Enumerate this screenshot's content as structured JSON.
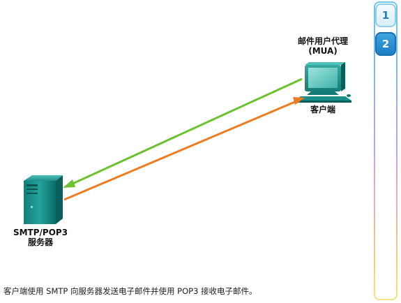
{
  "diagram": {
    "client_title_line1": "邮件用户代理",
    "client_title_line2": "(MUA)",
    "client_label": "客户端",
    "server_label_line1": "SMTP/POP3",
    "server_label_line2": "服务器",
    "caption": "客户端使用 SMTP 向服务器发送电子邮件并使用 POP3 接收电子邮件。"
  },
  "steps": [
    {
      "label": "1",
      "active": false
    },
    {
      "label": "2",
      "active": true
    }
  ],
  "colors": {
    "green_arrow": "#6cc22e",
    "orange_arrow": "#f07c22",
    "device_teal": "#1a8f8a",
    "active_step": "#1c7fc6"
  }
}
